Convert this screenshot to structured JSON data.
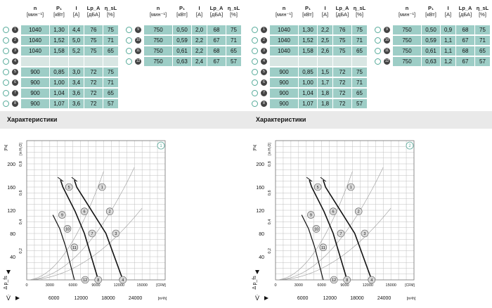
{
  "headers": {
    "n": {
      "label": "n",
      "unit": "[мин⁻¹]"
    },
    "p1": {
      "label": "P₁",
      "unit": "[кВт]"
    },
    "i": {
      "label": "I",
      "unit": "[А]"
    },
    "lpa": {
      "label": "Lp_A",
      "unit": "[дБА]"
    },
    "eta": {
      "label": "η_sL",
      "unit": "[%]"
    }
  },
  "panels": [
    {
      "section_title": "Характеристики",
      "badge": "1",
      "left_rows": [
        {
          "mark": "1",
          "n": "1040",
          "p1": "1,30",
          "i": "4,4",
          "lpa": "76",
          "eta": "75"
        },
        {
          "mark": "2",
          "n": "1040",
          "p1": "1,52",
          "i": "5,0",
          "lpa": "75",
          "eta": "71"
        },
        {
          "mark": "3",
          "n": "1040",
          "p1": "1,58",
          "i": "5,2",
          "lpa": "75",
          "eta": "65"
        },
        {
          "mark": "4",
          "n": "",
          "p1": "",
          "i": "",
          "lpa": "",
          "eta": ""
        },
        {
          "mark": "5",
          "n": "900",
          "p1": "0,85",
          "i": "3,0",
          "lpa": "72",
          "eta": "75"
        },
        {
          "mark": "6",
          "n": "900",
          "p1": "1,00",
          "i": "3,4",
          "lpa": "72",
          "eta": "71"
        },
        {
          "mark": "7",
          "n": "900",
          "p1": "1,04",
          "i": "3,6",
          "lpa": "72",
          "eta": "65"
        },
        {
          "mark": "8",
          "n": "900",
          "p1": "1,07",
          "i": "3,6",
          "lpa": "72",
          "eta": "57"
        }
      ],
      "right_rows": [
        {
          "mark": "9",
          "n": "750",
          "p1": "0,50",
          "i": "2,0",
          "lpa": "68",
          "eta": "75"
        },
        {
          "mark": "10",
          "n": "750",
          "p1": "0,59",
          "i": "2,2",
          "lpa": "67",
          "eta": "71"
        },
        {
          "mark": "11",
          "n": "750",
          "p1": "0,61",
          "i": "2,2",
          "lpa": "68",
          "eta": "65"
        },
        {
          "mark": "12",
          "n": "750",
          "p1": "0,63",
          "i": "2,4",
          "lpa": "67",
          "eta": "57"
        }
      ]
    },
    {
      "section_title": "Характеристики",
      "badge": "2",
      "left_rows": [
        {
          "mark": "1",
          "n": "1040",
          "p1": "1,30",
          "i": "2,2",
          "lpa": "76",
          "eta": "75"
        },
        {
          "mark": "2",
          "n": "1040",
          "p1": "1,52",
          "i": "2,5",
          "lpa": "75",
          "eta": "71"
        },
        {
          "mark": "3",
          "n": "1040",
          "p1": "1,58",
          "i": "2,6",
          "lpa": "75",
          "eta": "65"
        },
        {
          "mark": "4",
          "n": "",
          "p1": "",
          "i": "",
          "lpa": "",
          "eta": ""
        },
        {
          "mark": "5",
          "n": "900",
          "p1": "0,85",
          "i": "1,5",
          "lpa": "72",
          "eta": "75"
        },
        {
          "mark": "6",
          "n": "900",
          "p1": "1,00",
          "i": "1,7",
          "lpa": "72",
          "eta": "71"
        },
        {
          "mark": "7",
          "n": "900",
          "p1": "1,04",
          "i": "1,8",
          "lpa": "72",
          "eta": "65"
        },
        {
          "mark": "8",
          "n": "900",
          "p1": "1,07",
          "i": "1,8",
          "lpa": "72",
          "eta": "57"
        }
      ],
      "right_rows": [
        {
          "mark": "9",
          "n": "750",
          "p1": "0,50",
          "i": "0,9",
          "lpa": "68",
          "eta": "75"
        },
        {
          "mark": "10",
          "n": "750",
          "p1": "0,59",
          "i": "1,1",
          "lpa": "67",
          "eta": "71"
        },
        {
          "mark": "11",
          "n": "750",
          "p1": "0,61",
          "i": "1,1",
          "lpa": "68",
          "eta": "65"
        },
        {
          "mark": "12",
          "n": "750",
          "p1": "0,63",
          "i": "1,2",
          "lpa": "67",
          "eta": "57"
        }
      ]
    }
  ],
  "chart_data": [
    {
      "type": "line",
      "badge": "1",
      "ylabel": "Δ p_fs",
      "ylabel_top_unit": "[Pa]",
      "y2label_unit": "[in H₂O]",
      "xlabel": "V̇",
      "x_top_unit": "[CFM]",
      "x_bottom_unit": "[m³/h]",
      "x_cfm_ticks": [
        "0",
        "3000",
        "6000",
        "9000",
        "12000",
        "15000"
      ],
      "x_m3h_ticks": [
        "6000",
        "12000",
        "18000",
        "24000"
      ],
      "y_pa_ticks": [
        "40",
        "80",
        "120",
        "160",
        "200"
      ],
      "y_inh2o_ticks": [
        "0,2",
        "0,4",
        "0,6",
        "0,8"
      ],
      "xlim_cfm": [
        0,
        18000
      ],
      "ylim_pa": [
        0,
        240
      ],
      "series": [
        {
          "values": [
            [
              4400,
              172
            ],
            [
              4700,
              160
            ],
            [
              6300,
              118
            ],
            [
              7500,
              80
            ],
            [
              9300,
              0
            ]
          ]
        },
        {
          "values": [
            [
              6200,
              172
            ],
            [
              6500,
              160
            ],
            [
              8500,
              118
            ],
            [
              10300,
              80
            ],
            [
              12500,
              0
            ]
          ]
        }
      ],
      "points": [
        {
          "label": "1",
          "cfm": 9800,
          "pa": 160
        },
        {
          "label": "2",
          "cfm": 10800,
          "pa": 118
        },
        {
          "label": "3",
          "cfm": 11600,
          "pa": 80
        },
        {
          "label": "4",
          "cfm": 12500,
          "pa": 0
        },
        {
          "label": "5",
          "cfm": 5500,
          "pa": 160
        },
        {
          "label": "6",
          "cfm": 7500,
          "pa": 118
        },
        {
          "label": "7",
          "cfm": 8500,
          "pa": 80
        },
        {
          "label": "8",
          "cfm": 9300,
          "pa": 0
        },
        {
          "label": "9",
          "cfm": 4600,
          "pa": 112
        },
        {
          "label": "10",
          "cfm": 5300,
          "pa": 88
        },
        {
          "label": "11",
          "cfm": 6200,
          "pa": 56
        },
        {
          "label": "12",
          "cfm": 7600,
          "pa": 0
        }
      ],
      "grid": true
    },
    {
      "type": "line",
      "badge": "2",
      "ylabel": "Δ p_fs",
      "ylabel_top_unit": "[Pa]",
      "y2label_unit": "[in H₂O]",
      "xlabel": "V̇",
      "x_top_unit": "[CFM]",
      "x_bottom_unit": "[m³/h]",
      "x_cfm_ticks": [
        "0",
        "3000",
        "6000",
        "9000",
        "12000",
        "15000"
      ],
      "x_m3h_ticks": [
        "6000",
        "12000",
        "18000",
        "24000"
      ],
      "y_pa_ticks": [
        "40",
        "80",
        "120",
        "160",
        "200"
      ],
      "y_inh2o_ticks": [
        "0,2",
        "0,4",
        "0,6",
        "0,8"
      ],
      "xlim_cfm": [
        0,
        18000
      ],
      "ylim_pa": [
        0,
        240
      ],
      "series": [
        {
          "values": [
            [
              4400,
              172
            ],
            [
              4700,
              160
            ],
            [
              6300,
              118
            ],
            [
              7500,
              80
            ],
            [
              9300,
              0
            ]
          ]
        },
        {
          "values": [
            [
              6200,
              172
            ],
            [
              6500,
              160
            ],
            [
              8500,
              118
            ],
            [
              10300,
              80
            ],
            [
              12500,
              0
            ]
          ]
        }
      ],
      "points": [
        {
          "label": "1",
          "cfm": 9800,
          "pa": 160
        },
        {
          "label": "2",
          "cfm": 10800,
          "pa": 118
        },
        {
          "label": "3",
          "cfm": 11600,
          "pa": 80
        },
        {
          "label": "4",
          "cfm": 12500,
          "pa": 0
        },
        {
          "label": "5",
          "cfm": 5500,
          "pa": 160
        },
        {
          "label": "6",
          "cfm": 7500,
          "pa": 118
        },
        {
          "label": "7",
          "cfm": 8500,
          "pa": 80
        },
        {
          "label": "8",
          "cfm": 9300,
          "pa": 0
        },
        {
          "label": "9",
          "cfm": 4600,
          "pa": 112
        },
        {
          "label": "10",
          "cfm": 5300,
          "pa": 88
        },
        {
          "label": "11",
          "cfm": 6200,
          "pa": 56
        },
        {
          "label": "12",
          "cfm": 7600,
          "pa": 0
        }
      ],
      "grid": true
    }
  ],
  "colors": {
    "cell_fill": "#9dcdc6",
    "cell_empty": "#d8e6e3",
    "marker_ring": "#5aa99a",
    "section_bg": "#e9e9e9",
    "grid": "#bfbfbf",
    "curve": "#111111",
    "marker_fill": "#d9d9d9"
  }
}
